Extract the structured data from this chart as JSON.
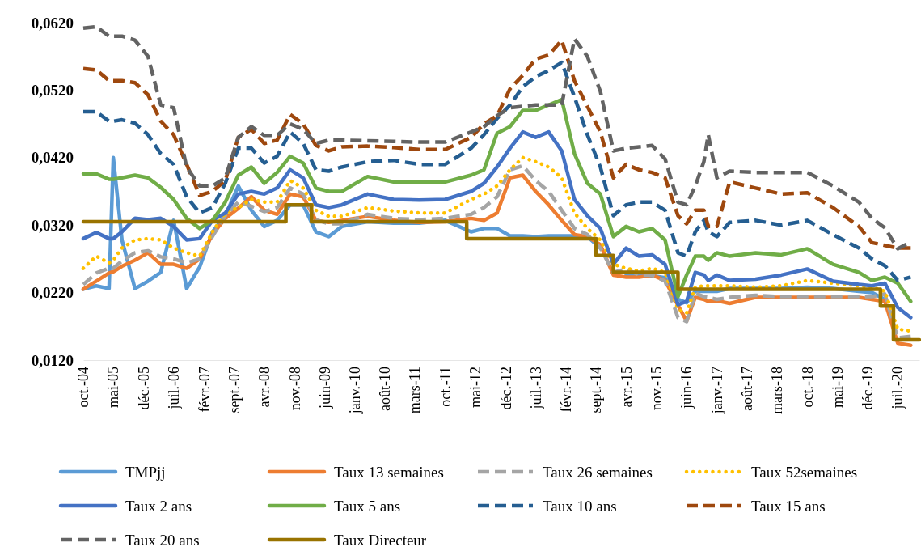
{
  "chart_data": {
    "type": "line",
    "legend": "bottom",
    "grid": false,
    "xlim": [
      "2004-10",
      "2020-12"
    ],
    "xticks": [
      {
        "value": "2004-10",
        "label": "oct.-04"
      },
      {
        "value": "2005-05",
        "label": "mai-05"
      },
      {
        "value": "2005-12",
        "label": "déc.-05"
      },
      {
        "value": "2006-07",
        "label": "juil.-06"
      },
      {
        "value": "2007-02",
        "label": "févr.-07"
      },
      {
        "value": "2007-09",
        "label": "sept.-07"
      },
      {
        "value": "2008-04",
        "label": "avr.-08"
      },
      {
        "value": "2008-11",
        "label": "nov.-08"
      },
      {
        "value": "2009-06",
        "label": "juin-09"
      },
      {
        "value": "2010-01",
        "label": "janv.-10"
      },
      {
        "value": "2010-08",
        "label": "août-10"
      },
      {
        "value": "2011-03",
        "label": "mars-11"
      },
      {
        "value": "2011-10",
        "label": "oct.-11"
      },
      {
        "value": "2012-05",
        "label": "mai-12"
      },
      {
        "value": "2012-12",
        "label": "déc.-12"
      },
      {
        "value": "2013-07",
        "label": "juil.-13"
      },
      {
        "value": "2014-02",
        "label": "févr.-14"
      },
      {
        "value": "2014-09",
        "label": "sept.-14"
      },
      {
        "value": "2015-04",
        "label": "avr.-15"
      },
      {
        "value": "2015-11",
        "label": "nov.-15"
      },
      {
        "value": "2016-06",
        "label": "juin-16"
      },
      {
        "value": "2017-01",
        "label": "janv.-17"
      },
      {
        "value": "2017-08",
        "label": "août-17"
      },
      {
        "value": "2018-03",
        "label": "mars-18"
      },
      {
        "value": "2018-10",
        "label": "oct.-18"
      },
      {
        "value": "2019-05",
        "label": "mai-19"
      },
      {
        "value": "2019-12",
        "label": "déc.-19"
      },
      {
        "value": "2020-07",
        "label": "juil.-20"
      }
    ],
    "ylim": [
      0.012,
      0.062
    ],
    "yticks": [
      {
        "value": 0.012,
        "label": "0,0120"
      },
      {
        "value": 0.022,
        "label": "0,0220"
      },
      {
        "value": 0.032,
        "label": "0,0320"
      },
      {
        "value": 0.042,
        "label": "0,0420"
      },
      {
        "value": 0.052,
        "label": "0,0520"
      },
      {
        "value": 0.062,
        "label": "0,0620"
      }
    ],
    "x": [
      "2004-10",
      "2005-01",
      "2005-04",
      "2005-05",
      "2005-07",
      "2005-10",
      "2006-01",
      "2006-04",
      "2006-07",
      "2006-10",
      "2007-01",
      "2007-04",
      "2007-07",
      "2007-10",
      "2008-01",
      "2008-04",
      "2008-07",
      "2008-10",
      "2009-01",
      "2009-04",
      "2009-07",
      "2009-10",
      "2010-04",
      "2010-10",
      "2011-04",
      "2011-10",
      "2012-04",
      "2012-07",
      "2012-10",
      "2013-01",
      "2013-04",
      "2013-07",
      "2013-10",
      "2014-01",
      "2014-04",
      "2014-07",
      "2014-10",
      "2015-01",
      "2015-04",
      "2015-07",
      "2015-10",
      "2016-01",
      "2016-04",
      "2016-06",
      "2016-08",
      "2016-10",
      "2016-11",
      "2017-01",
      "2017-04",
      "2017-10",
      "2018-04",
      "2018-10",
      "2019-04",
      "2019-10",
      "2020-01",
      "2020-04",
      "2020-07",
      "2020-10"
    ],
    "series": [
      {
        "name": "TMPjj",
        "color": "#5b9bd5",
        "line_style": "solid",
        "values": [
          0.0225,
          0.023,
          0.0226,
          0.042,
          0.0298,
          0.0226,
          0.0237,
          0.025,
          0.0327,
          0.0226,
          0.0258,
          0.031,
          0.0334,
          0.0378,
          0.0342,
          0.0318,
          0.0327,
          0.035,
          0.035,
          0.031,
          0.0303,
          0.0318,
          0.0325,
          0.0323,
          0.0323,
          0.0327,
          0.031,
          0.0315,
          0.0315,
          0.0304,
          0.0304,
          0.0303,
          0.0304,
          0.0304,
          0.0304,
          0.0303,
          0.0286,
          null,
          0.0246,
          0.0246,
          0.0245,
          0.0242,
          0.021,
          0.0205,
          0.0222,
          0.0222,
          0.0222,
          0.0222,
          0.0226,
          0.0226,
          0.0226,
          0.0228,
          0.0226,
          0.0222,
          0.022,
          0.021,
          null,
          null
        ]
      },
      {
        "name": "Taux 13 semaines",
        "color": "#ed7d31",
        "line_style": "solid",
        "values": [
          0.0225,
          0.0237,
          0.0249,
          0.0251,
          0.0259,
          0.0268,
          0.0279,
          0.0262,
          0.0262,
          0.0256,
          0.027,
          0.0306,
          0.033,
          0.0345,
          0.0362,
          0.0342,
          0.0336,
          0.0366,
          0.0362,
          0.0327,
          0.0324,
          0.0327,
          0.0333,
          0.0327,
          0.0324,
          0.0325,
          0.033,
          0.0327,
          0.0338,
          0.039,
          0.0394,
          0.037,
          0.035,
          0.0327,
          0.0306,
          0.0303,
          0.0291,
          0.0246,
          0.0243,
          0.0243,
          0.0246,
          0.0238,
          0.0201,
          0.0178,
          0.0213,
          0.021,
          0.0207,
          0.0208,
          0.0204,
          0.0213,
          0.0213,
          0.0213,
          0.0213,
          0.0213,
          0.021,
          0.0207,
          0.0145,
          0.0142
        ]
      },
      {
        "name": "Taux 26 semaines",
        "color": "#a5a5a5",
        "line_style": "dashed",
        "values": [
          0.0232,
          0.0249,
          0.0256,
          0.0256,
          0.0267,
          0.0279,
          0.0282,
          0.0273,
          0.027,
          0.0264,
          0.027,
          0.0303,
          0.0334,
          0.0354,
          0.0348,
          0.034,
          0.0346,
          0.0375,
          0.0366,
          0.0328,
          0.0322,
          0.0322,
          0.0336,
          0.033,
          0.0328,
          0.033,
          0.0336,
          0.0346,
          0.0362,
          0.0402,
          0.0408,
          0.0386,
          0.037,
          0.0342,
          0.0315,
          0.0306,
          0.0286,
          0.025,
          0.0255,
          0.0246,
          0.0246,
          0.0237,
          0.0183,
          0.0177,
          0.0219,
          0.0214,
          0.0213,
          0.021,
          0.0213,
          0.0216,
          0.0214,
          0.0214,
          0.0214,
          0.0214,
          0.0214,
          0.0218,
          0.0153,
          0.0155
        ]
      },
      {
        "name": "Taux 52semaines",
        "color": "#ffc000",
        "line_style": "dotted",
        "values": [
          0.0256,
          0.0274,
          0.0264,
          0.0268,
          0.0286,
          0.0298,
          0.03,
          0.0298,
          0.0286,
          0.0279,
          0.0274,
          0.031,
          0.0338,
          0.0346,
          0.0358,
          0.0354,
          0.0354,
          0.0386,
          0.0375,
          0.0342,
          0.0333,
          0.0333,
          0.0346,
          0.0341,
          0.0338,
          0.0338,
          0.0358,
          0.0366,
          0.0378,
          0.0402,
          0.042,
          0.0414,
          0.0406,
          0.039,
          0.0338,
          0.0315,
          0.0298,
          0.0262,
          0.0256,
          0.0252,
          0.0256,
          0.025,
          0.0195,
          0.019,
          0.0228,
          0.023,
          0.023,
          0.023,
          0.023,
          0.0228,
          0.023,
          0.0238,
          0.0234,
          0.023,
          0.0228,
          0.0222,
          0.0166,
          0.0163
        ]
      },
      {
        "name": "Taux 2 ans",
        "color": "#4472c4",
        "line_style": "solid",
        "values": [
          0.03,
          0.0309,
          0.03,
          0.03,
          0.031,
          0.033,
          0.0328,
          0.033,
          0.0318,
          0.0298,
          0.03,
          0.0327,
          0.0338,
          0.0366,
          0.037,
          0.0366,
          0.0375,
          0.0402,
          0.039,
          0.035,
          0.0346,
          0.035,
          0.0366,
          0.0358,
          0.0357,
          0.0358,
          0.037,
          0.0382,
          0.0406,
          0.0434,
          0.0458,
          0.045,
          0.0458,
          0.043,
          0.0358,
          0.0334,
          0.0315,
          0.0262,
          0.0286,
          0.0274,
          0.0276,
          0.0262,
          0.0202,
          0.0207,
          0.025,
          0.0246,
          0.0238,
          0.0246,
          0.0238,
          0.024,
          0.0246,
          0.0255,
          0.0237,
          0.0232,
          0.023,
          0.0234,
          0.0198,
          0.0183
        ]
      },
      {
        "name": "Taux 5 ans",
        "color": "#70ad47",
        "line_style": "solid",
        "values": [
          0.0396,
          0.0396,
          0.0388,
          0.0388,
          0.039,
          0.0394,
          0.039,
          0.0376,
          0.0358,
          0.033,
          0.0315,
          0.0327,
          0.0354,
          0.0394,
          0.0406,
          0.0382,
          0.0398,
          0.0422,
          0.0412,
          0.0375,
          0.037,
          0.037,
          0.0392,
          0.0384,
          0.0384,
          0.0384,
          0.0394,
          0.0402,
          0.0456,
          0.0466,
          0.049,
          0.049,
          0.0498,
          0.0506,
          0.0426,
          0.0382,
          0.0366,
          0.0303,
          0.0318,
          0.031,
          0.0315,
          0.0298,
          0.0214,
          0.0246,
          0.0274,
          0.0274,
          0.0268,
          0.0279,
          0.0274,
          0.0279,
          0.0276,
          0.0285,
          0.0262,
          0.025,
          0.0238,
          0.0243,
          0.0234,
          0.0207
        ]
      },
      {
        "name": "Taux 10 ans",
        "color": "#255e91",
        "line_style": "dashed",
        "values": [
          0.0488,
          0.0488,
          0.0474,
          0.0474,
          0.0476,
          0.0471,
          0.0454,
          0.0426,
          0.041,
          0.0362,
          0.0338,
          0.0346,
          0.0382,
          0.0434,
          0.0434,
          0.0412,
          0.0422,
          0.0458,
          0.0441,
          0.0402,
          0.04,
          0.0406,
          0.0414,
          0.0416,
          0.041,
          0.041,
          0.0434,
          0.0454,
          0.0478,
          0.0498,
          0.0525,
          0.054,
          0.0549,
          0.0561,
          0.051,
          0.0454,
          0.0406,
          0.0334,
          0.035,
          0.0354,
          0.0354,
          0.0342,
          0.0279,
          0.0274,
          0.031,
          0.0327,
          0.031,
          0.0303,
          0.0324,
          0.0327,
          0.032,
          0.0327,
          0.0306,
          0.0286,
          0.027,
          0.026,
          0.0238,
          0.0243
        ]
      },
      {
        "name": "Taux 15 ans",
        "color": "#9e480e",
        "line_style": "dashed",
        "values": [
          0.0552,
          0.055,
          0.0534,
          0.0534,
          0.0534,
          0.0531,
          0.0513,
          0.0474,
          0.0454,
          0.041,
          0.0364,
          0.037,
          0.0386,
          0.045,
          0.0462,
          0.0441,
          0.0446,
          0.0484,
          0.047,
          0.0438,
          0.043,
          0.0436,
          0.0437,
          0.0435,
          0.0432,
          0.0432,
          0.045,
          0.047,
          0.0482,
          0.0522,
          0.0542,
          0.0566,
          0.0572,
          0.0594,
          0.0534,
          0.0496,
          0.0458,
          0.039,
          0.041,
          0.0402,
          0.0398,
          0.039,
          0.0334,
          0.0322,
          0.0342,
          0.0342,
          0.0318,
          0.0318,
          0.0384,
          0.0375,
          0.0366,
          0.0368,
          0.0346,
          0.0318,
          0.0294,
          0.029,
          0.0286,
          0.0286
        ]
      },
      {
        "name": "Taux 20 ans",
        "color": "#636363",
        "line_style": "dashed",
        "values": [
          0.0612,
          0.0614,
          0.06,
          0.06,
          0.06,
          0.0594,
          0.057,
          0.0498,
          0.0494,
          0.0406,
          0.0378,
          0.0378,
          0.039,
          0.045,
          0.0466,
          0.0453,
          0.0453,
          0.047,
          0.0462,
          0.0441,
          0.0446,
          0.0446,
          0.0445,
          0.0444,
          0.0443,
          0.0443,
          0.0458,
          0.0466,
          0.0482,
          0.0494,
          0.0496,
          0.0498,
          0.0498,
          0.0498,
          0.0596,
          0.057,
          0.0518,
          0.043,
          0.0434,
          0.0436,
          0.0438,
          0.0418,
          0.0354,
          0.035,
          0.0378,
          0.0414,
          0.0454,
          0.039,
          0.04,
          0.0398,
          0.0398,
          0.0398,
          0.0378,
          0.0354,
          0.033,
          0.0316,
          0.0285,
          0.0295
        ]
      },
      {
        "name": "Taux Directeur",
        "color": "#997300",
        "line_style": "solid",
        "type": "step",
        "x": [
          "2004-10",
          "2008-09",
          "2009-03",
          "2012-03",
          "2014-09",
          "2015-01",
          "2016-04",
          "2020-03",
          "2020-06",
          "2020-12"
        ],
        "values": [
          0.0325,
          0.035,
          0.0325,
          0.03,
          0.0275,
          0.025,
          0.0225,
          0.02,
          0.015,
          0.015
        ]
      }
    ]
  }
}
